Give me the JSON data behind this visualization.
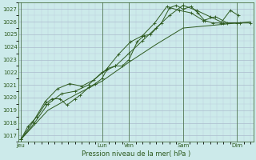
{
  "title": "",
  "xlabel": "Pression niveau de la mer( hPa )",
  "bg_color": "#cceaea",
  "grid_major_color": "#aabbcc",
  "grid_minor_color": "#bbccdd",
  "line_color": "#2d5a1e",
  "ylim": [
    1016.5,
    1027.5
  ],
  "yticks": [
    1017,
    1018,
    1019,
    1020,
    1021,
    1022,
    1023,
    1024,
    1025,
    1026,
    1027
  ],
  "day_labels": [
    "Jeu",
    "Lun",
    "Ven",
    "Sam",
    "Dim"
  ],
  "day_positions": [
    0.0,
    3.0,
    4.0,
    6.0,
    8.0
  ],
  "xlim": [
    -0.1,
    8.6
  ],
  "series1": [
    [
      0.0,
      1016.7
    ],
    [
      0.25,
      1017.7
    ],
    [
      0.6,
      1018.5
    ],
    [
      0.9,
      1019.5
    ],
    [
      1.15,
      1019.9
    ],
    [
      1.45,
      1019.9
    ],
    [
      1.7,
      1019.4
    ],
    [
      2.0,
      1019.9
    ],
    [
      2.2,
      1020.2
    ],
    [
      2.5,
      1020.8
    ],
    [
      2.75,
      1021.1
    ],
    [
      3.0,
      1021.5
    ],
    [
      3.2,
      1022.3
    ],
    [
      3.5,
      1022.5
    ],
    [
      3.75,
      1022.5
    ],
    [
      4.0,
      1023.0
    ],
    [
      4.3,
      1024.4
    ],
    [
      4.55,
      1024.9
    ],
    [
      4.8,
      1025.0
    ],
    [
      5.2,
      1025.9
    ],
    [
      5.5,
      1027.1
    ],
    [
      5.75,
      1027.3
    ],
    [
      6.0,
      1027.0
    ],
    [
      6.3,
      1027.2
    ],
    [
      6.55,
      1026.7
    ],
    [
      6.8,
      1026.1
    ],
    [
      7.1,
      1025.9
    ],
    [
      7.4,
      1025.9
    ],
    [
      7.75,
      1026.9
    ],
    [
      8.05,
      1026.5
    ]
  ],
  "series2": [
    [
      0.0,
      1016.7
    ],
    [
      0.5,
      1018.0
    ],
    [
      1.0,
      1019.5
    ],
    [
      1.5,
      1020.3
    ],
    [
      2.0,
      1020.5
    ],
    [
      2.5,
      1021.0
    ],
    [
      3.0,
      1022.0
    ],
    [
      3.5,
      1022.5
    ],
    [
      4.0,
      1023.5
    ],
    [
      4.5,
      1024.5
    ],
    [
      5.0,
      1025.5
    ],
    [
      5.5,
      1026.5
    ],
    [
      6.0,
      1027.3
    ],
    [
      6.5,
      1026.9
    ],
    [
      7.0,
      1026.4
    ],
    [
      7.5,
      1025.9
    ],
    [
      8.0,
      1025.9
    ],
    [
      8.5,
      1025.9
    ]
  ],
  "series3": [
    [
      0.0,
      1016.7
    ],
    [
      0.45,
      1018.1
    ],
    [
      0.9,
      1019.7
    ],
    [
      1.35,
      1020.7
    ],
    [
      1.8,
      1021.1
    ],
    [
      2.25,
      1020.9
    ],
    [
      2.7,
      1021.4
    ],
    [
      3.15,
      1022.2
    ],
    [
      3.6,
      1023.4
    ],
    [
      4.05,
      1024.4
    ],
    [
      4.5,
      1024.9
    ],
    [
      4.95,
      1025.9
    ],
    [
      5.4,
      1027.2
    ],
    [
      5.85,
      1026.9
    ],
    [
      6.3,
      1026.7
    ],
    [
      6.75,
      1026.1
    ],
    [
      7.2,
      1026.4
    ],
    [
      7.65,
      1025.9
    ],
    [
      8.1,
      1025.9
    ]
  ],
  "series4_smooth": [
    [
      0.0,
      1016.7
    ],
    [
      1.0,
      1019.0
    ],
    [
      2.0,
      1020.2
    ],
    [
      3.0,
      1021.3
    ],
    [
      4.0,
      1022.8
    ],
    [
      5.0,
      1024.2
    ],
    [
      6.0,
      1025.5
    ],
    [
      7.0,
      1025.7
    ],
    [
      8.0,
      1025.9
    ],
    [
      8.5,
      1026.0
    ]
  ]
}
